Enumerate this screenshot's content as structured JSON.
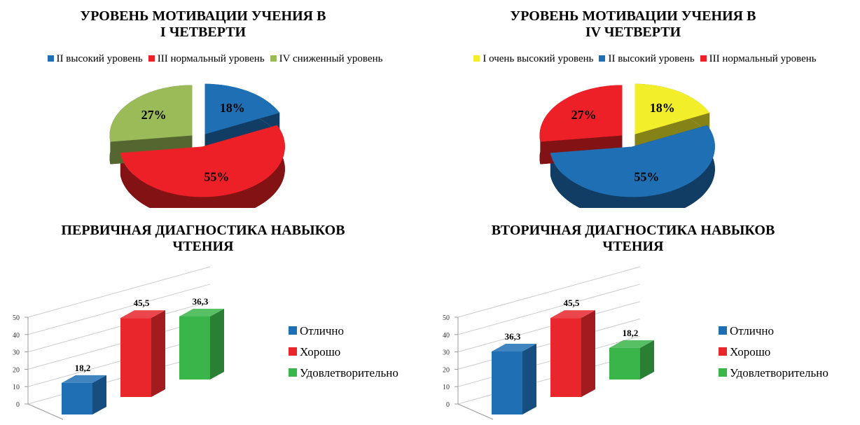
{
  "chart_data": [
    {
      "type": "pie",
      "title": "УРОВЕНЬ МОТИВАЦИИ УЧЕНИЯ В\nI ЧЕТВЕРТИ",
      "categories": [
        "II высокий уровень",
        "III нормальный уровень",
        "IV сниженный уровень"
      ],
      "values": [
        18,
        55,
        27
      ],
      "value_labels": [
        "18%",
        "55%",
        "27%"
      ],
      "colors": [
        "#1f6fb5",
        "#ee2027",
        "#9bbb59"
      ]
    },
    {
      "type": "pie",
      "title": "УРОВЕНЬ МОТИВАЦИИ УЧЕНИЯ В\nIV ЧЕТВЕРТИ",
      "categories": [
        "I очень высокий уровень",
        "II высокий уровень",
        "III нормальный уровень"
      ],
      "values": [
        18,
        55,
        27
      ],
      "value_labels": [
        "18%",
        "55%",
        "27%"
      ],
      "colors": [
        "#f2ee2a",
        "#1f6fb5",
        "#ee2027"
      ]
    },
    {
      "type": "bar",
      "title": "ПЕРВИЧНАЯ ДИАГНОСТИКА НАВЫКОВ\nЧТЕНИЯ",
      "ylim": [
        0,
        50
      ],
      "yticks": [
        0,
        10,
        20,
        30,
        40,
        50
      ],
      "grid": true,
      "series": [
        {
          "name": "Отлично",
          "color": "#1f6fb5",
          "values": [
            18.2
          ],
          "value_labels": [
            "18,2"
          ]
        },
        {
          "name": "Хорошо",
          "color": "#e8262b",
          "values": [
            45.5
          ],
          "value_labels": [
            "45,5"
          ]
        },
        {
          "name": "Удовлетворительно",
          "color": "#3ab54a",
          "values": [
            36.3
          ],
          "value_labels": [
            "36,3"
          ]
        }
      ]
    },
    {
      "type": "bar",
      "title": "ВТОРИЧНАЯ ДИАГНОСТИКА НАВЫКОВ\nЧТЕНИЯ",
      "ylim": [
        0,
        50
      ],
      "yticks": [
        0,
        10,
        20,
        30,
        40,
        50
      ],
      "grid": true,
      "series": [
        {
          "name": "Отлично",
          "color": "#1f6fb5",
          "values": [
            36.3
          ],
          "value_labels": [
            "36,3"
          ]
        },
        {
          "name": "Хорошо",
          "color": "#e8262b",
          "values": [
            45.5
          ],
          "value_labels": [
            "45,5"
          ]
        },
        {
          "name": "Удовлетворительно",
          "color": "#3ab54a",
          "values": [
            18.2
          ],
          "value_labels": [
            "18,2"
          ]
        }
      ]
    }
  ]
}
